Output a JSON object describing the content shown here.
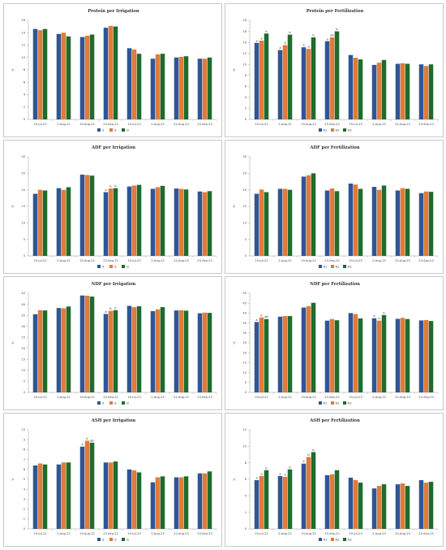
{
  "colors": {
    "series1": "#2f5597",
    "series2": "#e07b39",
    "series3": "#1f6b2e"
  },
  "chart_data": [
    {
      "type": "bar",
      "title": "Protein per Irrigation",
      "ylabel": "%",
      "ylim": [
        0,
        16
      ],
      "yticks": [
        0,
        2,
        4,
        6,
        8,
        10,
        12,
        14,
        16
      ],
      "categories": [
        "19-Jul-22",
        "2-Aug-22",
        "19-Aug-22",
        "23-Sep-22",
        "19-Jul-23",
        "2-Aug-23",
        "22-Aug-23",
        "23-Sep-23"
      ],
      "series": [
        {
          "name": "I1",
          "values": [
            14.6,
            13.8,
            13.3,
            14.8,
            11.5,
            9.8,
            10.0,
            9.8
          ]
        },
        {
          "name": "I2",
          "values": [
            14.4,
            14.0,
            13.5,
            15.1,
            11.3,
            10.5,
            10.1,
            9.8
          ]
        },
        {
          "name": "I3",
          "values": [
            14.6,
            13.4,
            13.7,
            15.0,
            10.6,
            10.6,
            10.2,
            10.0
          ]
        }
      ],
      "annotations": []
    },
    {
      "type": "bar",
      "title": "Protein per Fertilization",
      "ylabel": "%",
      "ylim": [
        0,
        18
      ],
      "yticks": [
        0,
        2,
        4,
        6,
        8,
        10,
        12,
        14,
        16,
        18
      ],
      "categories": [
        "19-Jul-22",
        "2-Aug-22",
        "19-Aug-22",
        "23-Sep-22",
        "19-Jul-23",
        "2-Aug-23",
        "22-Aug-23",
        "23-Sep-23"
      ],
      "series": [
        {
          "name": "N1",
          "values": [
            13.9,
            12.6,
            13.1,
            14.2,
            11.7,
            9.9,
            10.1,
            10.0
          ]
        },
        {
          "name": "N2",
          "values": [
            14.3,
            13.5,
            12.8,
            14.9,
            11.2,
            10.3,
            10.2,
            9.7
          ]
        },
        {
          "name": "N3",
          "values": [
            15.6,
            15.4,
            14.9,
            16.0,
            10.9,
            10.8,
            10.1,
            10.0
          ]
        }
      ],
      "annotations": [
        [
          "a",
          "a",
          "b"
        ],
        [
          "a",
          "a",
          "b"
        ],
        [
          "a",
          "a",
          "b"
        ],
        [
          "a",
          "ab",
          "b"
        ],
        [
          "",
          "",
          ""
        ],
        [
          "",
          "",
          ""
        ],
        [
          "",
          "",
          ""
        ],
        [
          "",
          "",
          ""
        ]
      ]
    },
    {
      "type": "bar",
      "title": "ADF per Irrigation",
      "ylabel": "%",
      "ylim": [
        0,
        30
      ],
      "yticks": [
        0,
        5,
        10,
        15,
        20,
        25,
        30
      ],
      "categories": [
        "19-Jul-22",
        "2-Aug-22",
        "19-Aug-22",
        "23-Sep-22",
        "19-Jul-23",
        "2-Aug-23",
        "22-Aug-23",
        "23-Sep-23"
      ],
      "series": [
        {
          "name": "I1",
          "values": [
            18.8,
            20.5,
            24.6,
            19.3,
            21.0,
            20.3,
            20.4,
            19.5
          ]
        },
        {
          "name": "I2",
          "values": [
            20.0,
            20.0,
            24.5,
            20.4,
            21.3,
            20.8,
            20.3,
            19.3
          ]
        },
        {
          "name": "I3",
          "values": [
            19.8,
            20.8,
            24.3,
            20.5,
            21.5,
            21.2,
            20.1,
            19.6
          ]
        }
      ],
      "annotations": [
        [
          "",
          "",
          ""
        ],
        [
          "",
          "",
          ""
        ],
        [
          "",
          "",
          ""
        ],
        [
          "a",
          "b",
          "b"
        ],
        [
          "",
          "",
          ""
        ],
        [
          "",
          "",
          ""
        ],
        [
          "",
          "",
          ""
        ],
        [
          "",
          "",
          ""
        ]
      ]
    },
    {
      "type": "bar",
      "title": "ADF per Fertilization",
      "ylabel": "%",
      "ylim": [
        0,
        30
      ],
      "yticks": [
        0,
        5,
        10,
        15,
        20,
        25,
        30
      ],
      "categories": [
        "19-Jul-22",
        "2-Aug-22",
        "19-Aug-22",
        "23-Sep-22",
        "19-Jul-23",
        "2-Aug-23",
        "22-Aug-23",
        "23-Sep-23"
      ],
      "series": [
        {
          "name": "N1",
          "values": [
            18.8,
            20.3,
            24.0,
            19.8,
            21.9,
            20.9,
            19.8,
            19.0
          ]
        },
        {
          "name": "N2",
          "values": [
            20.1,
            20.3,
            24.4,
            20.4,
            21.6,
            20.0,
            20.5,
            19.5
          ]
        },
        {
          "name": "N3",
          "values": [
            19.3,
            20.0,
            25.0,
            19.6,
            20.3,
            21.3,
            20.3,
            19.4
          ]
        }
      ],
      "annotations": []
    },
    {
      "type": "bar",
      "title": "NDF per Irrigation",
      "ylabel": "%",
      "ylim": [
        0,
        45
      ],
      "yticks": [
        0,
        5,
        10,
        15,
        20,
        25,
        30,
        35,
        40,
        45
      ],
      "categories": [
        "19-Jul-22",
        "2-Aug-22",
        "19-Aug-22",
        "23-Sep-22",
        "19-Jul-23",
        "2-Aug-23",
        "22-Aug-23",
        "23-Sep-23"
      ],
      "series": [
        {
          "name": "I1",
          "values": [
            35.5,
            38.3,
            44.0,
            35.6,
            39.3,
            36.9,
            37.2,
            35.9
          ]
        },
        {
          "name": "I2",
          "values": [
            37.3,
            38.2,
            43.9,
            37.0,
            38.7,
            37.7,
            37.3,
            36.2
          ]
        },
        {
          "name": "I3",
          "values": [
            37.2,
            39.0,
            43.5,
            37.3,
            39.1,
            38.7,
            37.1,
            36.1
          ]
        }
      ],
      "annotations": [
        [
          "",
          "",
          ""
        ],
        [
          "",
          "",
          ""
        ],
        [
          "",
          "",
          ""
        ],
        [
          "a",
          "b",
          "b"
        ],
        [
          "",
          "",
          ""
        ],
        [
          "",
          "",
          ""
        ],
        [
          "",
          "",
          ""
        ],
        [
          "",
          "",
          ""
        ]
      ]
    },
    {
      "type": "bar",
      "title": "NDF per Fertilization",
      "ylabel": "%",
      "ylim": [
        0,
        50
      ],
      "yticks": [
        0,
        5,
        10,
        15,
        20,
        25,
        30,
        35,
        40,
        45,
        50
      ],
      "categories": [
        "19-Jul-22",
        "2-Aug-22",
        "19-Aug-22",
        "23-Sep-22",
        "19-Jul-23",
        "2-Aug-23",
        "22-Aug-23",
        "23-Sep-23"
      ],
      "series": [
        {
          "name": "N1",
          "values": [
            35.5,
            38.2,
            42.8,
            36.2,
            40.0,
            37.4,
            37.1,
            36.3
          ]
        },
        {
          "name": "N2",
          "values": [
            37.8,
            38.5,
            43.5,
            37.0,
            39.5,
            36.2,
            37.6,
            36.5
          ]
        },
        {
          "name": "N3",
          "values": [
            37.0,
            38.5,
            45.2,
            36.4,
            37.3,
            39.0,
            37.0,
            36.0
          ]
        }
      ],
      "annotations": [
        [
          "a",
          "b",
          "ab"
        ],
        [
          "",
          "",
          ""
        ],
        [
          "",
          "",
          ""
        ],
        [
          "",
          "",
          ""
        ],
        [
          "",
          "",
          ""
        ],
        [
          "a",
          "a",
          "b"
        ],
        [
          "",
          "",
          ""
        ],
        [
          "",
          "",
          ""
        ]
      ]
    },
    {
      "type": "bar",
      "title": "ASH per Irrigation",
      "ylabel": "%",
      "ylim": [
        0,
        10
      ],
      "yticks": [
        0,
        1,
        2,
        3,
        4,
        5,
        6,
        7,
        8,
        9,
        10
      ],
      "categories": [
        "19-Jul-22",
        "2-Aug-22",
        "19-Aug-22",
        "23-Sep-22",
        "19-Jul-23",
        "2-Aug-23",
        "22-Aug-23",
        "23-Sep-23"
      ],
      "series": [
        {
          "name": "I1",
          "values": [
            6.4,
            6.5,
            8.3,
            6.7,
            6.0,
            4.7,
            5.2,
            5.6
          ]
        },
        {
          "name": "I2",
          "values": [
            6.6,
            6.7,
            8.9,
            6.7,
            5.9,
            5.2,
            5.2,
            5.6
          ]
        },
        {
          "name": "I3",
          "values": [
            6.5,
            6.7,
            8.7,
            6.8,
            5.7,
            5.3,
            5.3,
            5.8
          ]
        }
      ],
      "annotations": [
        [
          "",
          "",
          ""
        ],
        [
          "",
          "",
          ""
        ],
        [
          "a",
          "b",
          "ab"
        ],
        [
          "",
          "",
          ""
        ],
        [
          "",
          "",
          ""
        ],
        [
          "",
          "",
          ""
        ],
        [
          "",
          "",
          ""
        ],
        [
          "",
          "",
          ""
        ]
      ]
    },
    {
      "type": "bar",
      "title": "ASH per Fertilization",
      "ylabel": "%",
      "ylim": [
        0,
        12
      ],
      "yticks": [
        0,
        2,
        4,
        6,
        8,
        10,
        12
      ],
      "categories": [
        "19-Jul-22",
        "2-Aug-22",
        "19-Aug-22",
        "23-Sep-22",
        "19-Jul-23",
        "2-Aug-23",
        "22-Aug-23",
        "23-Sep-23"
      ],
      "series": [
        {
          "name": "N1",
          "values": [
            5.9,
            6.4,
            7.9,
            6.5,
            6.2,
            4.9,
            5.4,
            5.9
          ]
        },
        {
          "name": "N2",
          "values": [
            6.4,
            6.3,
            8.7,
            6.6,
            5.9,
            5.2,
            5.5,
            5.6
          ]
        },
        {
          "name": "N3",
          "values": [
            7.1,
            7.2,
            9.3,
            7.1,
            5.6,
            5.4,
            5.2,
            5.7
          ]
        }
      ],
      "annotations": [
        [
          "a",
          "a",
          "b"
        ],
        [
          "a",
          "a",
          "b"
        ],
        [
          "a",
          "b",
          "b"
        ],
        [
          "",
          "",
          ""
        ],
        [
          "",
          "",
          ""
        ],
        [
          "",
          "",
          ""
        ],
        [
          "",
          "",
          ""
        ],
        [
          "",
          "",
          ""
        ]
      ]
    }
  ]
}
